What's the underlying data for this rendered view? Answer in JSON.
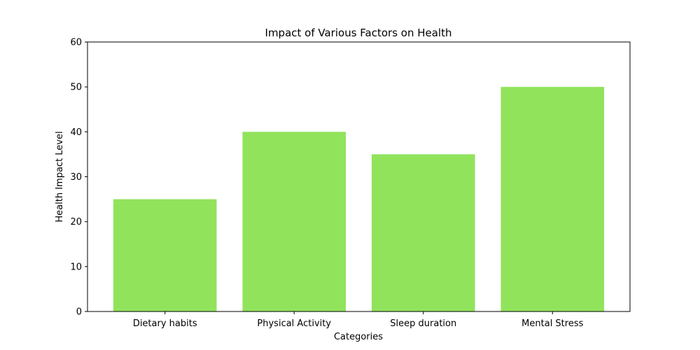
{
  "chart_data": {
    "type": "bar",
    "title": "Impact of Various Factors on Health",
    "xlabel": "Categories",
    "ylabel": "Health Impact Level",
    "categories": [
      "Dietary habits",
      "Physical Activity",
      "Sleep duration",
      "Mental Stress"
    ],
    "values": [
      25,
      40,
      35,
      50
    ],
    "ylim": [
      0,
      60
    ],
    "yticks": [
      0,
      10,
      20,
      30,
      40,
      50,
      60
    ],
    "grid": false,
    "legend": "none",
    "bar_color": "#91e35c"
  }
}
